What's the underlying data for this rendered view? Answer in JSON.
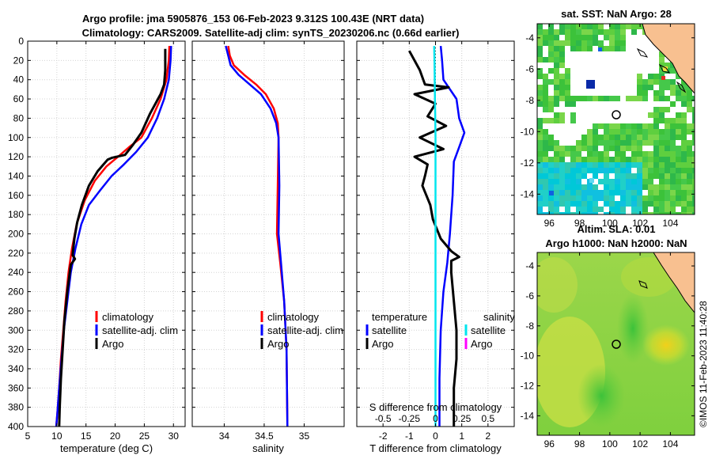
{
  "figure": {
    "title_line1": "Argo profile: jma 5905876_153 06-Feb-2023 9.312S 100.43E (NRT data)",
    "title_line2": "Climatology: CARS2009. Satellite-adj clim: synTS_20230206.nc (0.66d earlier)",
    "copyright": "©IMOS 11-Feb-2023 11:40:28"
  },
  "colors": {
    "climatology": "#ff0000",
    "satellite_adj": "#0000ff",
    "argo": "#000000",
    "sat_salinity": "#00e5ee",
    "argo_salinity": "#ff00ff",
    "land": "#f8c090",
    "grid": "#d0d0d0"
  },
  "chart_data": [
    {
      "id": "temperature",
      "type": "line",
      "xlabel": "temperature (deg C)",
      "ylabel": "",
      "xlim": [
        5,
        32
      ],
      "ylim": [
        400,
        0
      ],
      "xticks": [
        "5",
        "10",
        "15",
        "20",
        "25",
        "30"
      ],
      "xtick_values": [
        5,
        10,
        15,
        20,
        25,
        30
      ],
      "yticks": [
        "0",
        "20",
        "40",
        "60",
        "80",
        "100",
        "120",
        "140",
        "160",
        "180",
        "200",
        "220",
        "240",
        "260",
        "280",
        "300",
        "320",
        "340",
        "360",
        "380",
        "400"
      ],
      "ytick_values": [
        0,
        20,
        40,
        60,
        80,
        100,
        120,
        140,
        160,
        180,
        200,
        220,
        240,
        260,
        280,
        300,
        320,
        340,
        360,
        380,
        400
      ],
      "legend": [
        "climatology",
        "satellite-adj. clim",
        "Argo"
      ],
      "series": [
        {
          "name": "climatology",
          "color": "#ff0000",
          "points": [
            [
              29.3,
              5
            ],
            [
              29.2,
              20
            ],
            [
              28.8,
              40
            ],
            [
              27.8,
              60
            ],
            [
              26.3,
              80
            ],
            [
              24.5,
              100
            ],
            [
              22.4,
              110
            ],
            [
              20.5,
              120
            ],
            [
              18.5,
              130
            ],
            [
              16.5,
              145
            ],
            [
              14.8,
              165
            ],
            [
              13.4,
              190
            ],
            [
              12.6,
              215
            ],
            [
              12.0,
              240
            ],
            [
              11.5,
              270
            ],
            [
              11.1,
              300
            ],
            [
              10.7,
              330
            ],
            [
              10.4,
              360
            ],
            [
              10.1,
              385
            ],
            [
              9.9,
              400
            ]
          ]
        },
        {
          "name": "satellite-adj. clim",
          "color": "#0000ff",
          "points": [
            [
              29.6,
              5
            ],
            [
              29.5,
              20
            ],
            [
              29.2,
              40
            ],
            [
              28.4,
              60
            ],
            [
              27.2,
              80
            ],
            [
              25.6,
              100
            ],
            [
              23.6,
              115
            ],
            [
              21.5,
              128
            ],
            [
              19.4,
              140
            ],
            [
              17.4,
              155
            ],
            [
              15.5,
              170
            ],
            [
              14.2,
              190
            ],
            [
              13.2,
              215
            ],
            [
              12.4,
              240
            ],
            [
              11.8,
              270
            ],
            [
              11.2,
              300
            ],
            [
              10.8,
              330
            ],
            [
              10.4,
              360
            ],
            [
              10.1,
              385
            ],
            [
              9.9,
              400
            ]
          ]
        },
        {
          "name": "Argo",
          "color": "#000000",
          "points": [
            [
              28.6,
              8
            ],
            [
              28.6,
              30
            ],
            [
              28.4,
              45
            ],
            [
              27.8,
              55
            ],
            [
              26.0,
              75
            ],
            [
              24.5,
              95
            ],
            [
              23.0,
              108
            ],
            [
              21.7,
              118
            ],
            [
              19.5,
              121
            ],
            [
              18.7,
              123
            ],
            [
              17.0,
              135
            ],
            [
              15.5,
              150
            ],
            [
              14.3,
              170
            ],
            [
              13.5,
              188
            ],
            [
              13.0,
              205
            ],
            [
              12.7,
              222
            ],
            [
              13.1,
              226
            ],
            [
              12.4,
              232
            ],
            [
              11.8,
              260
            ],
            [
              11.3,
              290
            ],
            [
              11.0,
              320
            ],
            [
              10.7,
              350
            ],
            [
              10.5,
              380
            ],
            [
              10.4,
              400
            ]
          ]
        }
      ]
    },
    {
      "id": "salinity",
      "type": "line",
      "xlabel": "salinity",
      "xlim": [
        33.6,
        35.5
      ],
      "ylim": [
        400,
        0
      ],
      "xticks": [
        "34",
        "34.5",
        "35"
      ],
      "xtick_values": [
        34,
        34.5,
        35
      ],
      "legend": [
        "climatology",
        "satellite-adj. clim",
        "Argo"
      ],
      "series": [
        {
          "name": "climatology",
          "color": "#ff0000",
          "points": [
            [
              34.05,
              5
            ],
            [
              34.07,
              15
            ],
            [
              34.12,
              25
            ],
            [
              34.25,
              35
            ],
            [
              34.4,
              45
            ],
            [
              34.52,
              55
            ],
            [
              34.62,
              70
            ],
            [
              34.67,
              85
            ],
            [
              34.68,
              100
            ],
            [
              34.67,
              150
            ],
            [
              34.66,
              200
            ],
            [
              34.7,
              230
            ],
            [
              34.75,
              270
            ],
            [
              34.78,
              320
            ],
            [
              34.79,
              400
            ]
          ]
        },
        {
          "name": "satellite-adj. clim",
          "color": "#0000ff",
          "points": [
            [
              34.02,
              5
            ],
            [
              34.05,
              15
            ],
            [
              34.08,
              25
            ],
            [
              34.18,
              35
            ],
            [
              34.32,
              45
            ],
            [
              34.46,
              55
            ],
            [
              34.58,
              70
            ],
            [
              34.65,
              85
            ],
            [
              34.68,
              100
            ],
            [
              34.69,
              150
            ],
            [
              34.68,
              200
            ],
            [
              34.71,
              230
            ],
            [
              34.75,
              270
            ],
            [
              34.78,
              320
            ],
            [
              34.79,
              400
            ]
          ]
        }
      ]
    },
    {
      "id": "difference",
      "type": "line",
      "xlabel": "T difference from climatology",
      "xlabel_top": "S difference from climatology",
      "xlim": [
        -3,
        3
      ],
      "xlim_top": [
        -0.75,
        0.75
      ],
      "ylim": [
        400,
        0
      ],
      "xticks": [
        "-2",
        "-1",
        "0",
        "1",
        "2"
      ],
      "xtick_values": [
        -2,
        -1,
        0,
        1,
        2
      ],
      "xticks_top": [
        "-0.5",
        "-0.25",
        "0",
        "0.25",
        "0.5"
      ],
      "xtick_values_top": [
        -0.5,
        -0.25,
        0,
        0.25,
        0.5
      ],
      "legend_temperature_title": "temperature",
      "legend_salinity_title": "salinity",
      "legend": [
        "satellite",
        "Argo",
        "satellite",
        "Argo"
      ],
      "series": [
        {
          "name": "T satellite",
          "color": "#0000ff",
          "points": [
            [
              0.2,
              5
            ],
            [
              0.25,
              20
            ],
            [
              0.3,
              40
            ],
            [
              0.8,
              60
            ],
            [
              0.9,
              80
            ],
            [
              1.1,
              95
            ],
            [
              0.9,
              110
            ],
            [
              0.7,
              125
            ],
            [
              0.65,
              160
            ],
            [
              0.55,
              200
            ],
            [
              0.45,
              230
            ],
            [
              0.3,
              260
            ],
            [
              0.2,
              300
            ],
            [
              0.15,
              350
            ],
            [
              0.15,
              400
            ]
          ]
        },
        {
          "name": "T Argo",
          "color": "#000000",
          "points": [
            [
              -1.0,
              10
            ],
            [
              -0.6,
              30
            ],
            [
              -0.4,
              45
            ],
            [
              0.5,
              48
            ],
            [
              -0.8,
              55
            ],
            [
              0.0,
              65
            ],
            [
              -0.3,
              78
            ],
            [
              0.4,
              88
            ],
            [
              -0.6,
              100
            ],
            [
              0.3,
              112
            ],
            [
              -0.8,
              120
            ],
            [
              -0.3,
              128
            ],
            [
              -0.4,
              140
            ],
            [
              -0.5,
              150
            ],
            [
              -0.2,
              170
            ],
            [
              -0.1,
              185
            ],
            [
              0.2,
              205
            ],
            [
              0.6,
              218
            ],
            [
              0.9,
              224
            ],
            [
              0.6,
              228
            ],
            [
              0.6,
              240
            ],
            [
              0.7,
              270
            ],
            [
              0.8,
              300
            ],
            [
              0.8,
              330
            ],
            [
              0.7,
              360
            ],
            [
              0.7,
              400
            ]
          ]
        },
        {
          "name": "S satellite",
          "color": "#00e5ee",
          "points": [
            [
              -0.05,
              5
            ],
            [
              -0.04,
              20
            ],
            [
              -0.03,
              40
            ],
            [
              -0.02,
              60
            ],
            [
              -0.01,
              80
            ],
            [
              0.0,
              100
            ],
            [
              0.0,
              150
            ],
            [
              0.0,
              200
            ],
            [
              0.0,
              250
            ],
            [
              0.0,
              300
            ],
            [
              0.0,
              350
            ],
            [
              0.0,
              400
            ]
          ]
        }
      ]
    }
  ],
  "maps": {
    "sst_title": "sat. SST: NaN Argo: 28",
    "sla_title_line1": "Altim. SLA: 0.01",
    "sla_title_line2": "Argo h1000: NaN h2000: NaN",
    "lat_ticks": [
      "-4",
      "-6",
      "-8",
      "-10",
      "-12",
      "-14"
    ],
    "lon_ticks": [
      "96",
      "98",
      "100",
      "102",
      "104"
    ],
    "float_lon": 100.43,
    "float_lat": -9.312
  }
}
